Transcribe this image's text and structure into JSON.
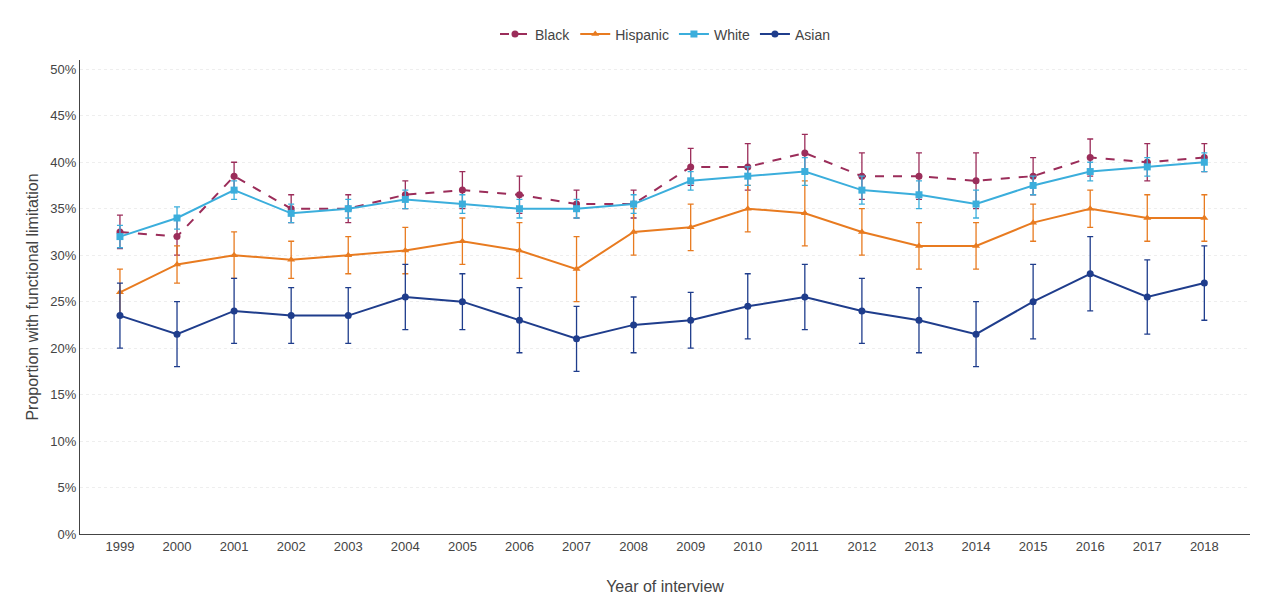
{
  "chart_data": {
    "type": "line",
    "xlabel": "Year of interview",
    "ylabel": "Proportion with functional limitation",
    "x": [
      1999,
      2000,
      2001,
      2002,
      2003,
      2004,
      2005,
      2006,
      2007,
      2008,
      2009,
      2010,
      2011,
      2012,
      2013,
      2014,
      2015,
      2016,
      2017,
      2018
    ],
    "xlim": [
      1998.3,
      2018.8
    ],
    "xticks": [
      1999,
      2000,
      2001,
      2002,
      2003,
      2004,
      2005,
      2006,
      2007,
      2008,
      2009,
      2010,
      2011,
      2012,
      2013,
      2014,
      2015,
      2016,
      2017,
      2018
    ],
    "ylim": [
      0,
      51
    ],
    "yticks": [
      {
        "value": 0,
        "label": "0%"
      },
      {
        "value": 5,
        "label": "5%"
      },
      {
        "value": 10,
        "label": "10%"
      },
      {
        "value": 15,
        "label": "15%"
      },
      {
        "value": 20,
        "label": "20%"
      },
      {
        "value": 25,
        "label": "25%"
      },
      {
        "value": 30,
        "label": "30%"
      },
      {
        "value": 35,
        "label": "35%"
      },
      {
        "value": 40,
        "label": "40%"
      },
      {
        "value": 45,
        "label": "45%"
      },
      {
        "value": 50,
        "label": "50%"
      }
    ],
    "grid": "y",
    "legend": "top",
    "series": [
      {
        "name": "Black",
        "color": "#9B2D5A",
        "marker": "circle",
        "line_style": "dashed",
        "values": [
          32.5,
          32.0,
          38.5,
          35.0,
          35.0,
          36.5,
          37.0,
          36.5,
          35.5,
          35.5,
          39.5,
          39.5,
          41.0,
          38.5,
          38.5,
          38.0,
          38.5,
          40.5,
          40.0,
          40.5
        ],
        "yerr_lo": [
          1.8,
          2.0,
          1.5,
          1.5,
          1.5,
          1.5,
          2.0,
          2.0,
          1.5,
          1.5,
          2.0,
          2.5,
          2.0,
          2.5,
          2.5,
          3.0,
          2.0,
          2.0,
          2.0,
          1.5
        ],
        "yerr_hi": [
          1.8,
          2.0,
          1.5,
          1.5,
          1.5,
          1.5,
          2.0,
          2.0,
          1.5,
          1.5,
          2.0,
          2.5,
          2.0,
          2.5,
          2.5,
          3.0,
          2.0,
          2.0,
          2.0,
          1.5
        ]
      },
      {
        "name": "Hispanic",
        "color": "#E87B20",
        "marker": "triangle",
        "line_style": "solid",
        "values": [
          26.0,
          29.0,
          30.0,
          29.5,
          30.0,
          30.5,
          31.5,
          30.5,
          28.5,
          32.5,
          33.0,
          35.0,
          34.5,
          32.5,
          31.0,
          31.0,
          33.5,
          35.0,
          34.0,
          34.0
        ],
        "yerr_lo": [
          2.5,
          2.0,
          2.5,
          2.0,
          2.0,
          2.5,
          2.5,
          3.0,
          3.5,
          2.5,
          2.5,
          2.5,
          3.5,
          2.5,
          2.5,
          2.5,
          2.0,
          2.0,
          2.5,
          2.5
        ],
        "yerr_hi": [
          2.5,
          2.0,
          2.5,
          2.0,
          2.0,
          2.5,
          2.5,
          3.0,
          3.5,
          2.5,
          2.5,
          2.5,
          3.5,
          2.5,
          2.5,
          2.5,
          2.0,
          2.0,
          2.5,
          2.5
        ]
      },
      {
        "name": "White",
        "color": "#3BAEDC",
        "marker": "square",
        "line_style": "solid",
        "values": [
          32.0,
          34.0,
          37.0,
          34.5,
          35.0,
          36.0,
          35.5,
          35.0,
          35.0,
          35.5,
          38.0,
          38.5,
          39.0,
          37.0,
          36.5,
          35.5,
          37.5,
          39.0,
          39.5,
          40.0
        ],
        "yerr_lo": [
          1.2,
          1.2,
          1.0,
          1.0,
          1.0,
          1.0,
          1.0,
          1.0,
          1.0,
          1.0,
          1.0,
          1.0,
          1.5,
          1.5,
          1.5,
          1.5,
          1.0,
          1.0,
          1.0,
          1.0
        ],
        "yerr_hi": [
          1.2,
          1.2,
          1.0,
          1.0,
          1.0,
          1.0,
          1.0,
          1.0,
          1.0,
          1.0,
          1.0,
          1.0,
          1.5,
          1.5,
          1.5,
          1.5,
          1.0,
          1.0,
          1.0,
          1.0
        ]
      },
      {
        "name": "Asian",
        "color": "#1F3D8C",
        "marker": "circle",
        "line_style": "solid",
        "values": [
          23.5,
          21.5,
          24.0,
          23.5,
          23.5,
          25.5,
          25.0,
          23.0,
          21.0,
          22.5,
          23.0,
          24.5,
          25.5,
          24.0,
          23.0,
          21.5,
          25.0,
          28.0,
          25.5,
          27.0
        ],
        "yerr_lo": [
          3.5,
          3.5,
          3.5,
          3.0,
          3.0,
          3.5,
          3.0,
          3.5,
          3.5,
          3.0,
          3.0,
          3.5,
          3.5,
          3.5,
          3.5,
          3.5,
          4.0,
          4.0,
          4.0,
          4.0
        ],
        "yerr_hi": [
          3.5,
          3.5,
          3.5,
          3.0,
          3.0,
          3.5,
          3.0,
          3.5,
          3.5,
          3.0,
          3.0,
          3.5,
          3.5,
          3.5,
          3.5,
          3.5,
          4.0,
          4.0,
          4.0,
          4.0
        ]
      }
    ]
  }
}
